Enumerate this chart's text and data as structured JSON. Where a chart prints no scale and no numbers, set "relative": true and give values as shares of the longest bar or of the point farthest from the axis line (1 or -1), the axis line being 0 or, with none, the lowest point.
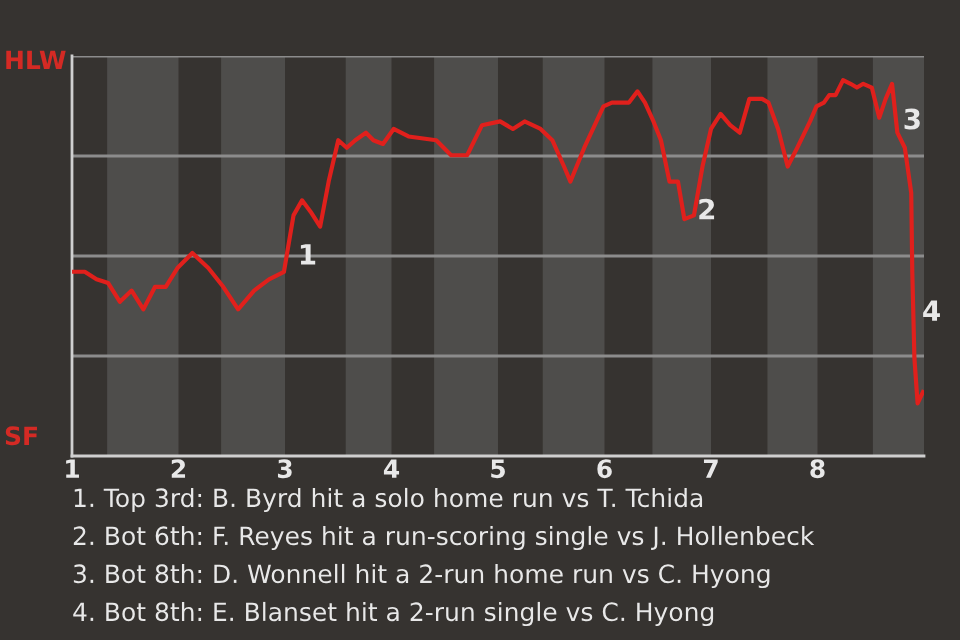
{
  "chart_data": {
    "type": "line",
    "relative": true,
    "x": [
      1.02,
      1.12,
      1.23,
      1.34,
      1.45,
      1.56,
      1.67,
      1.78,
      1.88,
      1.99,
      2.13,
      2.28,
      2.42,
      2.56,
      2.71,
      2.85,
      2.99,
      3.08,
      3.16,
      3.24,
      3.33,
      3.41,
      3.5,
      3.58,
      3.66,
      3.76,
      3.83,
      3.92,
      4.02,
      4.16,
      4.42,
      4.56,
      4.71,
      4.85,
      5.02,
      5.14,
      5.25,
      5.4,
      5.51,
      5.62,
      5.68,
      5.81,
      5.99,
      6.07,
      6.23,
      6.31,
      6.38,
      6.46,
      6.53,
      6.61,
      6.69,
      6.75,
      6.84,
      6.92,
      7.0,
      7.09,
      7.18,
      7.27,
      7.36,
      7.48,
      7.54,
      7.63,
      7.72,
      7.81,
      7.93,
      7.99,
      8.06,
      8.11,
      8.17,
      8.24,
      8.31,
      8.37,
      8.43,
      8.51,
      8.58,
      8.64,
      8.7,
      8.75,
      8.82,
      8.88,
      8.89,
      8.91,
      8.94,
      8.99
    ],
    "series": [
      {
        "color": "#e0201c",
        "values": [
          0.49,
          0.49,
          0.47,
          0.46,
          0.41,
          0.44,
          0.39,
          0.45,
          0.45,
          0.5,
          0.54,
          0.5,
          0.45,
          0.39,
          0.44,
          0.47,
          0.49,
          0.64,
          0.68,
          0.65,
          0.61,
          0.73,
          0.84,
          0.82,
          0.84,
          0.86,
          0.84,
          0.83,
          0.87,
          0.85,
          0.84,
          0.8,
          0.8,
          0.88,
          0.89,
          0.87,
          0.89,
          0.87,
          0.84,
          0.77,
          0.73,
          0.82,
          0.93,
          0.94,
          0.94,
          0.97,
          0.94,
          0.89,
          0.84,
          0.73,
          0.73,
          0.63,
          0.64,
          0.77,
          0.87,
          0.91,
          0.88,
          0.86,
          0.95,
          0.95,
          0.94,
          0.87,
          0.77,
          0.82,
          0.89,
          0.93,
          0.94,
          0.96,
          0.96,
          1,
          0.99,
          0.98,
          0.99,
          0.98,
          0.9,
          0.95,
          0.99,
          0.86,
          0.82,
          0.7,
          0.49,
          0.26,
          0.14,
          0.17
        ]
      }
    ],
    "xlim": [
      1,
      9
    ],
    "xticks": [
      1,
      2,
      3,
      4,
      5,
      6,
      7,
      8
    ],
    "grid": "y",
    "bands": [
      {
        "axis": "x",
        "from": 1.33,
        "to": 2,
        "color": "#4e4d4b"
      },
      {
        "axis": "x",
        "from": 2.4,
        "to": 3,
        "color": "#4e4d4b"
      },
      {
        "axis": "x",
        "from": 3.57,
        "to": 4,
        "color": "#4e4d4b"
      },
      {
        "axis": "x",
        "from": 4.4,
        "to": 5,
        "color": "#4e4d4b"
      },
      {
        "axis": "x",
        "from": 5.42,
        "to": 6,
        "color": "#4e4d4b"
      },
      {
        "axis": "x",
        "from": 6.45,
        "to": 7,
        "color": "#4e4d4b"
      },
      {
        "axis": "x",
        "from": 7.53,
        "to": 8,
        "color": "#4e4d4b"
      },
      {
        "axis": "x",
        "from": 8.52,
        "to": 9,
        "color": "#4e4d4b"
      }
    ],
    "annotations": [
      {
        "text": "1",
        "x": 3.12,
        "y": 0.53
      },
      {
        "text": "2",
        "x": 6.87,
        "y": 0.65
      },
      {
        "text": "3",
        "x": 8.8,
        "y": 0.89
      },
      {
        "text": "4",
        "x": 8.98,
        "y": 0.38
      },
      "HLW",
      "SF",
      "1. Top 3rd: B. Byrd hit a solo home run vs T. Tchida",
      "2. Bot 6th: F. Reyes hit a run-scoring single vs J. Hollenbeck",
      "3. Bot 8th: D. Wonnell hit a 2-run home run vs C. Hyong",
      "4. Bot 8th: E. Blanset hit a 2-run single vs C. Hyong"
    ]
  }
}
